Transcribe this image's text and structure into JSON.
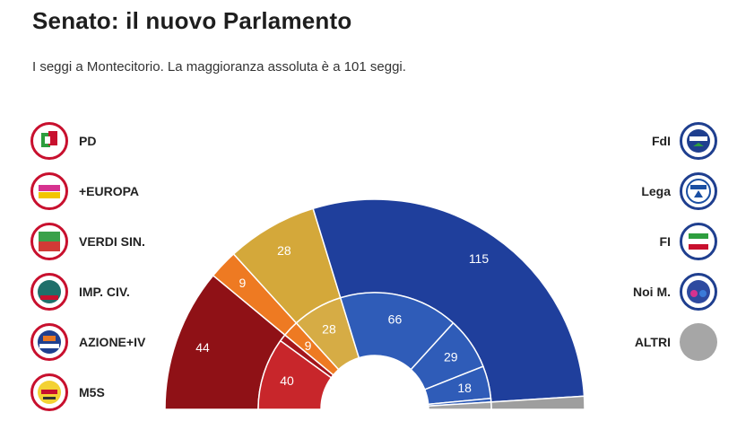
{
  "title": "Senato: il nuovo Parlamento",
  "subtitle": "I seggi a Montecitorio. La maggioranza assoluta è a 101 seggi.",
  "parties_left": [
    {
      "key": "pd",
      "label": "PD",
      "logo_icon": "pd-logo-icon",
      "color": "#c8102e"
    },
    {
      "key": "europa",
      "label": "+EUROPA",
      "logo_icon": "piu-europa-logo-icon",
      "color": "#d6328f"
    },
    {
      "key": "verdi",
      "label": "VERDI SIN.",
      "logo_icon": "verdi-sinistra-logo-icon",
      "color": "#d23a36"
    },
    {
      "key": "impciv",
      "label": "IMP. CIV.",
      "logo_icon": "impegno-civico-logo-icon",
      "color": "#b01e2d"
    },
    {
      "key": "azione",
      "label": "AZIONE+IV",
      "logo_icon": "azione-italia-viva-logo-icon",
      "color": "#e87722"
    },
    {
      "key": "m5s",
      "label": "M5S",
      "logo_icon": "movimento-5-stelle-logo-icon",
      "color": "#e8a317"
    }
  ],
  "parties_right": [
    {
      "key": "fdi",
      "label": "FdI",
      "logo_icon": "fratelli-ditalia-logo-icon",
      "color": "#1f3f8f"
    },
    {
      "key": "lega",
      "label": "Lega",
      "logo_icon": "lega-logo-icon",
      "color": "#1a4fa3"
    },
    {
      "key": "fi",
      "label": "FI",
      "logo_icon": "forza-italia-logo-icon",
      "color": "#2a5db0"
    },
    {
      "key": "noim",
      "label": "Noi M.",
      "logo_icon": "noi-moderati-logo-icon",
      "color": "#2e4aa0"
    },
    {
      "key": "altri",
      "label": "ALTRI",
      "logo_icon": "altri-gray-circle-icon",
      "color": "#a6a6a6"
    }
  ],
  "chart_data": {
    "type": "parliament-hemicycle",
    "title": "Senato: il nuovo Parlamento",
    "subtitle": "I seggi a Montecitorio. La maggioranza assoluta è a 101 seggi.",
    "total_seats": 200,
    "majority": 101,
    "coalitions": [
      {
        "name": "",
        "color": "#8f1116",
        "label": "44",
        "values": [
          40,
          4
        ],
        "parties": [
          "PD",
          "+EUROPA / VERDI SIN. / IMP. CIV."
        ],
        "party_colors": [
          "#c8262b",
          "#a3151b"
        ],
        "inner_labels": [
          "40",
          ""
        ]
      },
      {
        "name": "",
        "color": "#ee7a22",
        "label": "9",
        "values": [
          9
        ],
        "parties": [
          "AZIONE+IV"
        ],
        "party_colors": [
          "#ee7a22"
        ],
        "inner_labels": [
          "9"
        ]
      },
      {
        "name": "",
        "color": "#d4a83a",
        "label": "28",
        "values": [
          28
        ],
        "parties": [
          "M5S"
        ],
        "party_colors": [
          "#d6ac45"
        ],
        "inner_labels": [
          "28"
        ]
      },
      {
        "name": "",
        "color": "#1f3f9c",
        "label": "115",
        "values": [
          66,
          29,
          18,
          2
        ],
        "parties": [
          "FdI",
          "Lega",
          "FI",
          "Noi M."
        ],
        "party_colors": [
          "#2f5cb8",
          "#2f5cb8",
          "#2f5cb8",
          "#2f5cb8"
        ],
        "inner_labels": [
          "66",
          "29",
          "18",
          ""
        ]
      },
      {
        "name": "",
        "color": "#9e9e9e",
        "label": "",
        "values": [
          4
        ],
        "parties": [
          "ALTRI"
        ],
        "party_colors": [
          "#a4a4a4"
        ],
        "inner_labels": [
          ""
        ]
      }
    ]
  }
}
